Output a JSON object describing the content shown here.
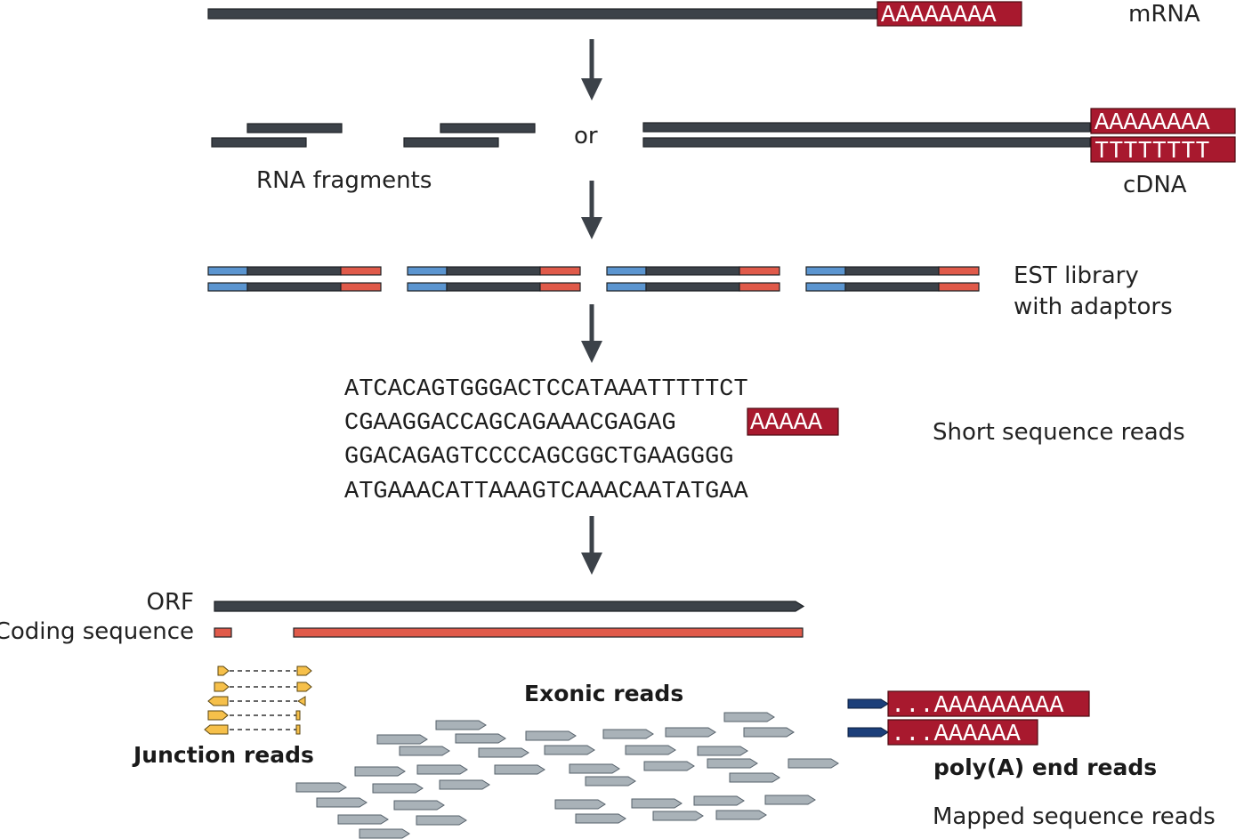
{
  "labels": {
    "mrna": "mRNA",
    "or": "or",
    "rna_fragments": "RNA fragments",
    "cdna": "cDNA",
    "est_line1": "EST library",
    "est_line2": "with adaptors",
    "short_reads": "Short sequence reads",
    "orf": "ORF",
    "coding_sequence": "Coding sequence",
    "exonic_reads": "Exonic reads",
    "junction_reads": "Junction reads",
    "polya_end_reads": "poly(A) end reads",
    "mapped_reads": "Mapped sequence reads"
  },
  "tags": {
    "mrna_polya": "AAAAAAAA",
    "cdna_polya": "AAAAAAAA",
    "cdna_polyt": "TTTTTTTT",
    "polya_read_1": "...AAAAAAAAA",
    "polya_read_2": "...AAAAAA"
  },
  "sequences": [
    {
      "text": "ATCACAGTGGGACTCCATAAATTTTTCT",
      "tail": ""
    },
    {
      "text": "CGAAGGACCAGCAGAAACGAGAG",
      "tail": "AAAAA"
    },
    {
      "text": "GGACAGAGTCCCCAGCGGCTGAAGGGG",
      "tail": ""
    },
    {
      "text": "ATGAAACATTAAAGTCAAACAATATGAA",
      "tail": ""
    }
  ],
  "colors": {
    "strand": "#3c4249",
    "adaptor_blue": "#5b95d0",
    "adaptor_red": "#e05a4a",
    "polya_tag": "#a8192e",
    "read_gray": "#a9b2b8",
    "junction_yellow": "#f6c04a",
    "polya_read_head": "#1c3f7a"
  }
}
